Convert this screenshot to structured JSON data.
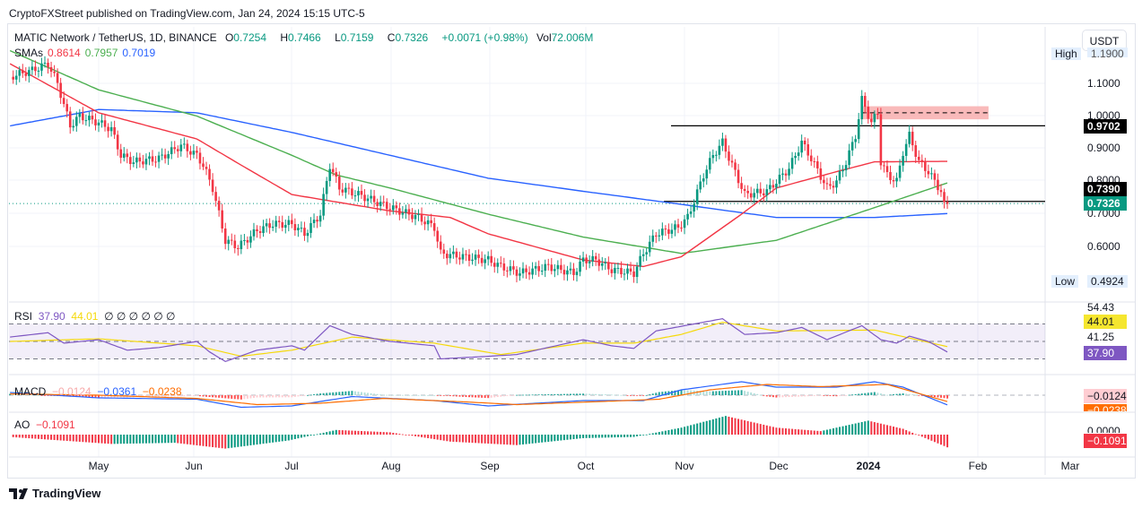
{
  "published": "CryptoFXStreet published on TradingView.com, Jan 24, 2024 15:15 UTC-5",
  "symbol": {
    "name": "MATIC Network / TetherUS, 1D, BINANCE",
    "o_label": "O",
    "o": "0.7254",
    "h_label": "H",
    "h": "0.7466",
    "l_label": "L",
    "l": "0.7159",
    "c_label": "C",
    "c": "0.7326",
    "change": "+0.0071 (+0.98%)",
    "vol_label": "Vol",
    "vol": "72.006M"
  },
  "sma": {
    "label": "SMAs",
    "v1": "0.8614",
    "v2": "0.7957",
    "v3": "0.7019"
  },
  "currency": "USDT",
  "price_axis": {
    "ticks": [
      "1.1000",
      "1.0000",
      "0.9000",
      "0.8000",
      "0.7000",
      "0.6000"
    ],
    "high_label": "High",
    "high": "1.1900",
    "low_label": "Low",
    "low": "0.4924",
    "level1": "0.9702",
    "level2": "0.7390",
    "last": "0.7326"
  },
  "rsi": {
    "label": "RSI",
    "value": "37.90",
    "ma": "44.01",
    "extra": "∅ ∅ ∅ ∅ ∅ ∅",
    "axis": [
      "54.43",
      "44.01",
      "41.25",
      "37.90"
    ]
  },
  "macd": {
    "label": "MACD",
    "hist": "−0.0124",
    "macd": "−0.0361",
    "signal": "−0.0238",
    "axis_hist": "−0.0124",
    "axis_signal": "−0.0238"
  },
  "ao": {
    "label": "AO",
    "value": "−0.1091",
    "axis_zero": "0.0000",
    "axis_value": "−0.1091"
  },
  "time_axis": [
    "May",
    "Jun",
    "Jul",
    "Aug",
    "Sep",
    "Oct",
    "Nov",
    "Dec",
    "2024",
    "Feb",
    "Mar"
  ],
  "brand": "TradingView",
  "colors": {
    "up": "#089981",
    "down": "#f23645",
    "sma50": "#f23645",
    "sma100": "#4caf50",
    "sma200": "#2962ff",
    "rsi": "#7e57c2",
    "rsi_ma": "#f5d90a",
    "macd": "#2962ff",
    "signal": "#ff6d00",
    "zone": "#f7a9a9"
  },
  "chart_data": {
    "type": "candlestick",
    "ylim": [
      0.47,
      1.2
    ],
    "close": [
      [
        "2023-04-03",
        1.12
      ],
      [
        "2023-04-10",
        1.14
      ],
      [
        "2023-04-15",
        1.16
      ],
      [
        "2023-04-18",
        1.1
      ],
      [
        "2023-04-22",
        0.97
      ],
      [
        "2023-04-25",
        1.0
      ],
      [
        "2023-05-01",
        0.98
      ],
      [
        "2023-05-05",
        0.96
      ],
      [
        "2023-05-08",
        0.88
      ],
      [
        "2023-05-12",
        0.86
      ],
      [
        "2023-05-20",
        0.87
      ],
      [
        "2023-05-27",
        0.91
      ],
      [
        "2023-06-01",
        0.88
      ],
      [
        "2023-06-03",
        0.85
      ],
      [
        "2023-06-06",
        0.78
      ],
      [
        "2023-06-10",
        0.62
      ],
      [
        "2023-06-14",
        0.6
      ],
      [
        "2023-06-20",
        0.65
      ],
      [
        "2023-06-25",
        0.67
      ],
      [
        "2023-07-01",
        0.67
      ],
      [
        "2023-07-05",
        0.64
      ],
      [
        "2023-07-10",
        0.7
      ],
      [
        "2023-07-13",
        0.85
      ],
      [
        "2023-07-16",
        0.78
      ],
      [
        "2023-07-22",
        0.76
      ],
      [
        "2023-08-01",
        0.72
      ],
      [
        "2023-08-10",
        0.69
      ],
      [
        "2023-08-15",
        0.66
      ],
      [
        "2023-08-17",
        0.58
      ],
      [
        "2023-08-24",
        0.57
      ],
      [
        "2023-09-01",
        0.56
      ],
      [
        "2023-09-05",
        0.54
      ],
      [
        "2023-09-11",
        0.52
      ],
      [
        "2023-09-20",
        0.54
      ],
      [
        "2023-09-28",
        0.52
      ],
      [
        "2023-10-01",
        0.56
      ],
      [
        "2023-10-05",
        0.56
      ],
      [
        "2023-10-10",
        0.53
      ],
      [
        "2023-10-17",
        0.52
      ],
      [
        "2023-10-20",
        0.58
      ],
      [
        "2023-10-24",
        0.64
      ],
      [
        "2023-10-31",
        0.66
      ],
      [
        "2023-11-03",
        0.69
      ],
      [
        "2023-11-05",
        0.74
      ],
      [
        "2023-11-08",
        0.82
      ],
      [
        "2023-11-11",
        0.88
      ],
      [
        "2023-11-14",
        0.92
      ],
      [
        "2023-11-17",
        0.85
      ],
      [
        "2023-11-21",
        0.76
      ],
      [
        "2023-11-28",
        0.77
      ],
      [
        "2023-12-01",
        0.8
      ],
      [
        "2023-12-05",
        0.84
      ],
      [
        "2023-12-09",
        0.92
      ],
      [
        "2023-12-12",
        0.87
      ],
      [
        "2023-12-17",
        0.78
      ],
      [
        "2023-12-20",
        0.8
      ],
      [
        "2023-12-23",
        0.86
      ],
      [
        "2023-12-26",
        0.94
      ],
      [
        "2023-12-28",
        1.05
      ],
      [
        "2023-12-31",
        0.98
      ],
      [
        "2024-01-02",
        1.01
      ],
      [
        "2024-01-03",
        0.86
      ],
      [
        "2024-01-05",
        0.82
      ],
      [
        "2024-01-08",
        0.8
      ],
      [
        "2024-01-10",
        0.89
      ],
      [
        "2024-01-12",
        0.94
      ],
      [
        "2024-01-15",
        0.86
      ],
      [
        "2024-01-18",
        0.83
      ],
      [
        "2024-01-20",
        0.8
      ],
      [
        "2024-01-22",
        0.77
      ],
      [
        "2024-01-23",
        0.7255
      ],
      [
        "2024-01-24",
        0.7326
      ]
    ],
    "sma_50": [
      [
        "2023-04-03",
        1.16
      ],
      [
        "2023-05-01",
        1.01
      ],
      [
        "2023-06-01",
        0.93
      ],
      [
        "2023-06-15",
        0.85
      ],
      [
        "2023-07-01",
        0.76
      ],
      [
        "2023-08-01",
        0.71
      ],
      [
        "2023-08-20",
        0.69
      ],
      [
        "2023-09-01",
        0.64
      ],
      [
        "2023-10-01",
        0.56
      ],
      [
        "2023-10-20",
        0.54
      ],
      [
        "2023-11-01",
        0.57
      ],
      [
        "2023-11-20",
        0.7
      ],
      [
        "2023-12-01",
        0.78
      ],
      [
        "2023-12-20",
        0.83
      ],
      [
        "2024-01-01",
        0.86
      ],
      [
        "2024-01-24",
        0.8614
      ]
    ],
    "sma_100": [
      [
        "2023-04-03",
        1.2
      ],
      [
        "2023-05-01",
        1.08
      ],
      [
        "2023-06-01",
        1.0
      ],
      [
        "2023-07-01",
        0.88
      ],
      [
        "2023-07-15",
        0.82
      ],
      [
        "2023-08-01",
        0.78
      ],
      [
        "2023-09-01",
        0.7
      ],
      [
        "2023-10-01",
        0.63
      ],
      [
        "2023-11-01",
        0.58
      ],
      [
        "2023-12-01",
        0.62
      ],
      [
        "2024-01-01",
        0.72
      ],
      [
        "2024-01-24",
        0.7957
      ]
    ],
    "sma_200": [
      [
        "2023-04-03",
        0.97
      ],
      [
        "2023-05-01",
        1.02
      ],
      [
        "2023-06-01",
        1.01
      ],
      [
        "2023-07-01",
        0.95
      ],
      [
        "2023-08-01",
        0.88
      ],
      [
        "2023-09-01",
        0.81
      ],
      [
        "2023-10-01",
        0.77
      ],
      [
        "2023-11-01",
        0.73
      ],
      [
        "2023-12-01",
        0.69
      ],
      [
        "2024-01-01",
        0.69
      ],
      [
        "2024-01-24",
        0.7019
      ]
    ],
    "levels": [
      0.9702,
      0.739
    ],
    "zone": {
      "from": "2023-12-28",
      "to": "2024-02-06",
      "low": 0.99,
      "high": 1.03,
      "mid": 1.01
    },
    "rsi": [
      [
        "2023-04-03",
        55
      ],
      [
        "2023-04-15",
        60
      ],
      [
        "2023-04-20",
        48
      ],
      [
        "2023-05-01",
        52
      ],
      [
        "2023-05-10",
        40
      ],
      [
        "2023-05-20",
        43
      ],
      [
        "2023-06-01",
        50
      ],
      [
        "2023-06-05",
        38
      ],
      [
        "2023-06-10",
        27
      ],
      [
        "2023-06-20",
        40
      ],
      [
        "2023-07-01",
        45
      ],
      [
        "2023-07-05",
        40
      ],
      [
        "2023-07-13",
        68
      ],
      [
        "2023-07-20",
        58
      ],
      [
        "2023-08-01",
        50
      ],
      [
        "2023-08-15",
        45
      ],
      [
        "2023-08-17",
        30
      ],
      [
        "2023-09-01",
        33
      ],
      [
        "2023-09-10",
        35
      ],
      [
        "2023-10-01",
        52
      ],
      [
        "2023-10-10",
        45
      ],
      [
        "2023-10-17",
        42
      ],
      [
        "2023-10-24",
        62
      ],
      [
        "2023-11-05",
        70
      ],
      [
        "2023-11-14",
        76
      ],
      [
        "2023-11-21",
        58
      ],
      [
        "2023-12-01",
        60
      ],
      [
        "2023-12-09",
        66
      ],
      [
        "2023-12-17",
        52
      ],
      [
        "2023-12-28",
        68
      ],
      [
        "2024-01-03",
        52
      ],
      [
        "2024-01-08",
        48
      ],
      [
        "2024-01-12",
        56
      ],
      [
        "2024-01-18",
        50
      ],
      [
        "2024-01-24",
        37.9
      ]
    ],
    "rsi_ma": [
      [
        "2023-04-03",
        50
      ],
      [
        "2023-05-01",
        53
      ],
      [
        "2023-06-01",
        45
      ],
      [
        "2023-06-15",
        33
      ],
      [
        "2023-07-01",
        40
      ],
      [
        "2023-07-20",
        55
      ],
      [
        "2023-08-15",
        48
      ],
      [
        "2023-09-05",
        35
      ],
      [
        "2023-10-01",
        48
      ],
      [
        "2023-10-17",
        48
      ],
      [
        "2023-11-01",
        58
      ],
      [
        "2023-11-14",
        72
      ],
      [
        "2023-12-01",
        62
      ],
      [
        "2024-01-01",
        63
      ],
      [
        "2024-01-24",
        44.01
      ]
    ],
    "macd": [
      [
        "2023-04-03",
        0.01
      ],
      [
        "2023-05-01",
        -0.01
      ],
      [
        "2023-06-01",
        -0.015
      ],
      [
        "2023-06-15",
        -0.045
      ],
      [
        "2023-07-01",
        -0.04
      ],
      [
        "2023-07-20",
        -0.005
      ],
      [
        "2023-08-15",
        -0.02
      ],
      [
        "2023-09-01",
        -0.04
      ],
      [
        "2023-10-01",
        -0.02
      ],
      [
        "2023-10-20",
        -0.02
      ],
      [
        "2023-11-01",
        0.02
      ],
      [
        "2023-11-20",
        0.05
      ],
      [
        "2023-12-01",
        0.03
      ],
      [
        "2023-12-20",
        0.03
      ],
      [
        "2024-01-01",
        0.05
      ],
      [
        "2024-01-10",
        0.03
      ],
      [
        "2024-01-24",
        -0.0361
      ]
    ],
    "signal": [
      [
        "2023-04-03",
        0.005
      ],
      [
        "2023-05-01",
        0.0
      ],
      [
        "2023-06-01",
        -0.012
      ],
      [
        "2023-06-20",
        -0.035
      ],
      [
        "2023-07-10",
        -0.03
      ],
      [
        "2023-07-30",
        -0.012
      ],
      [
        "2023-08-25",
        -0.025
      ],
      [
        "2023-09-10",
        -0.035
      ],
      [
        "2023-10-10",
        -0.022
      ],
      [
        "2023-10-25",
        -0.015
      ],
      [
        "2023-11-10",
        0.02
      ],
      [
        "2023-11-28",
        0.04
      ],
      [
        "2023-12-15",
        0.032
      ],
      [
        "2024-01-05",
        0.04
      ],
      [
        "2024-01-24",
        -0.0238
      ]
    ],
    "ao": [
      [
        "2023-04-03",
        -0.02
      ],
      [
        "2023-05-05",
        -0.08
      ],
      [
        "2023-05-25",
        -0.07
      ],
      [
        "2023-06-10",
        -0.12
      ],
      [
        "2023-06-30",
        -0.05
      ],
      [
        "2023-07-15",
        0.04
      ],
      [
        "2023-08-01",
        0.02
      ],
      [
        "2023-08-20",
        -0.06
      ],
      [
        "2023-09-10",
        -0.09
      ],
      [
        "2023-10-01",
        -0.03
      ],
      [
        "2023-10-17",
        -0.02
      ],
      [
        "2023-11-01",
        0.06
      ],
      [
        "2023-11-15",
        0.16
      ],
      [
        "2023-12-01",
        0.06
      ],
      [
        "2023-12-15",
        0.03
      ],
      [
        "2023-12-30",
        0.12
      ],
      [
        "2024-01-10",
        0.05
      ],
      [
        "2024-01-24",
        -0.1091
      ]
    ]
  }
}
